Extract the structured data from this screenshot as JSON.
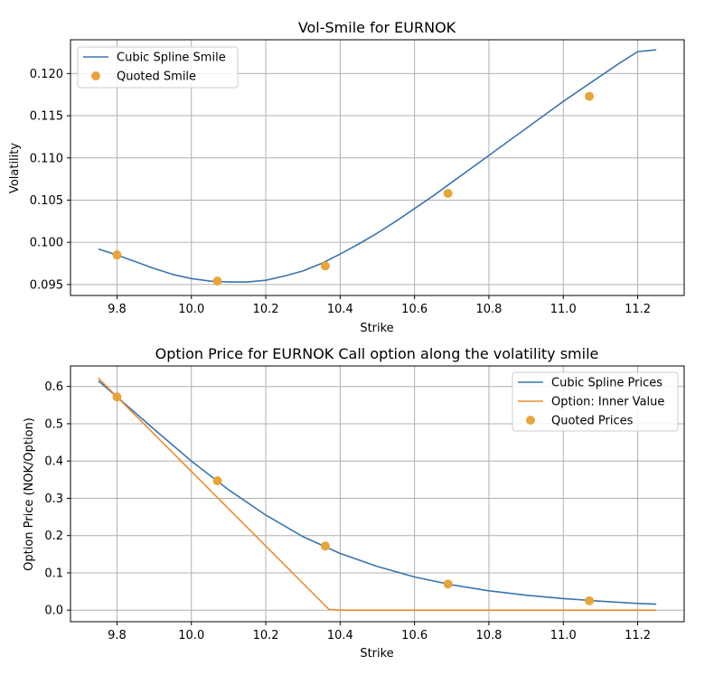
{
  "colors": {
    "spline": "#3a75af",
    "inner": "#ef8a2e",
    "quoted": "#e8a53a",
    "grid": "#b0b0b0"
  },
  "chart_data": [
    {
      "type": "line",
      "title": "Vol-Smile for EURNOK",
      "xlabel": "Strike",
      "ylabel": "Volatility",
      "xlim": [
        9.675,
        11.325
      ],
      "ylim": [
        0.0937,
        0.124
      ],
      "xticks": [
        9.8,
        10.0,
        10.2,
        10.4,
        10.6,
        10.8,
        11.0,
        11.2
      ],
      "yticks": [
        0.095,
        0.1,
        0.105,
        0.11,
        0.115,
        0.12
      ],
      "ytick_labels": [
        "0.095",
        "0.100",
        "0.105",
        "0.110",
        "0.115",
        "0.120"
      ],
      "grid": true,
      "legend_position": "top-left",
      "series": [
        {
          "name": "Cubic Spline Smile",
          "kind": "line",
          "x": [
            9.75,
            9.8,
            9.85,
            9.9,
            9.95,
            10.0,
            10.05,
            10.1,
            10.15,
            10.2,
            10.25,
            10.3,
            10.35,
            10.4,
            10.45,
            10.5,
            10.55,
            10.6,
            10.65,
            10.7,
            10.75,
            10.8,
            10.85,
            10.9,
            10.95,
            11.0,
            11.05,
            11.1,
            11.15,
            11.2,
            11.25
          ],
          "y": [
            0.0992,
            0.0985,
            0.0977,
            0.0969,
            0.0962,
            0.0957,
            0.0954,
            0.0953,
            0.0953,
            0.0955,
            0.096,
            0.0966,
            0.0975,
            0.0986,
            0.0998,
            0.1011,
            0.1025,
            0.104,
            0.1055,
            0.1071,
            0.1087,
            0.1103,
            0.1119,
            0.1135,
            0.1151,
            0.1167,
            0.1182,
            0.1197,
            0.1212,
            0.1226,
            0.1228
          ]
        },
        {
          "name": "Quoted Smile",
          "kind": "scatter",
          "x": [
            9.8,
            10.07,
            10.36,
            10.69,
            11.07
          ],
          "y": [
            0.0985,
            0.0954,
            0.0972,
            0.1058,
            0.1173
          ]
        }
      ]
    },
    {
      "type": "line",
      "title": "Option Price for EURNOK Call option along the volatility smile",
      "xlabel": "Strike",
      "ylabel": "Option Price (NOK/Option)",
      "xlim": [
        9.675,
        11.325
      ],
      "ylim": [
        -0.031,
        0.655
      ],
      "xticks": [
        9.8,
        10.0,
        10.2,
        10.4,
        10.6,
        10.8,
        11.0,
        11.2
      ],
      "yticks": [
        0.0,
        0.1,
        0.2,
        0.3,
        0.4,
        0.5,
        0.6
      ],
      "ytick_labels": [
        "0.0",
        "0.1",
        "0.2",
        "0.3",
        "0.4",
        "0.5",
        "0.6"
      ],
      "grid": true,
      "legend_position": "top-right",
      "series": [
        {
          "name": "Cubic Spline Prices",
          "kind": "line",
          "x": [
            9.75,
            9.8,
            9.9,
            10.0,
            10.1,
            10.2,
            10.3,
            10.4,
            10.5,
            10.6,
            10.7,
            10.8,
            10.9,
            11.0,
            11.1,
            11.2,
            11.25
          ],
          "y": [
            0.615,
            0.572,
            0.485,
            0.4,
            0.323,
            0.255,
            0.197,
            0.152,
            0.117,
            0.089,
            0.068,
            0.052,
            0.04,
            0.031,
            0.024,
            0.018,
            0.016
          ]
        },
        {
          "name": "Option: Inner Value",
          "kind": "line",
          "x": [
            9.75,
            10.37,
            10.4,
            11.25
          ],
          "y": [
            0.622,
            0.002,
            0.0,
            0.0
          ]
        },
        {
          "name": "Quoted Prices",
          "kind": "scatter",
          "x": [
            9.8,
            10.07,
            10.36,
            10.69,
            11.07
          ],
          "y": [
            0.572,
            0.347,
            0.172,
            0.07,
            0.025
          ]
        }
      ]
    }
  ]
}
